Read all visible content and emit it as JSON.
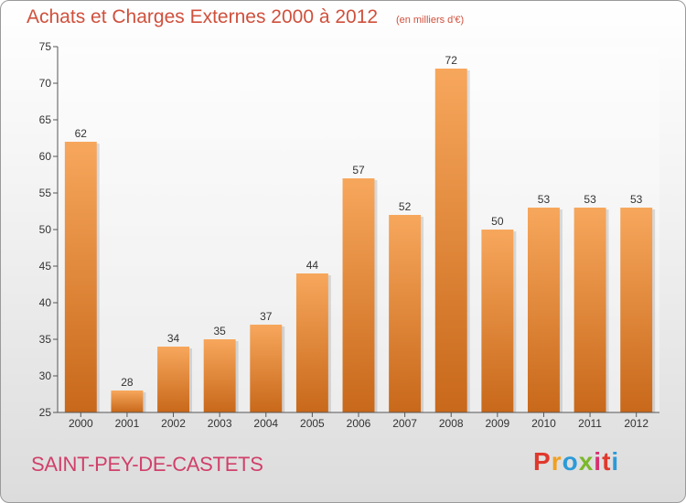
{
  "header": {
    "title": "Achats et Charges Externes 2000 à 2012",
    "subtitle": "(en milliers d'€)"
  },
  "footer": {
    "commune": "SAINT-PEY-DE-CASTETS",
    "logo_letters": [
      "P",
      "r",
      "o",
      "x",
      "i",
      "t",
      "i"
    ],
    "logo_colors": [
      "#e0382c",
      "#f0a020",
      "#2c9ad8",
      "#7cb82c",
      "#d63070",
      "#e0382c",
      "#2c9ad8"
    ]
  },
  "chart_data": {
    "type": "bar",
    "title": "Achats et Charges Externes 2000 à 2012",
    "subtitle": "(en milliers d'€)",
    "xlabel": "",
    "ylabel": "",
    "categories": [
      "2000",
      "2001",
      "2002",
      "2003",
      "2004",
      "2005",
      "2006",
      "2007",
      "2008",
      "2009",
      "2010",
      "2011",
      "2012"
    ],
    "values": [
      62,
      28,
      34,
      35,
      37,
      44,
      57,
      52,
      72,
      50,
      53,
      53,
      53
    ],
    "ylim": [
      25,
      75
    ],
    "yticks": [
      25,
      30,
      35,
      40,
      45,
      50,
      55,
      60,
      65,
      70,
      75
    ],
    "grid": false,
    "bar_color_top": "#f7a75c",
    "bar_color_bottom": "#c8681a"
  }
}
